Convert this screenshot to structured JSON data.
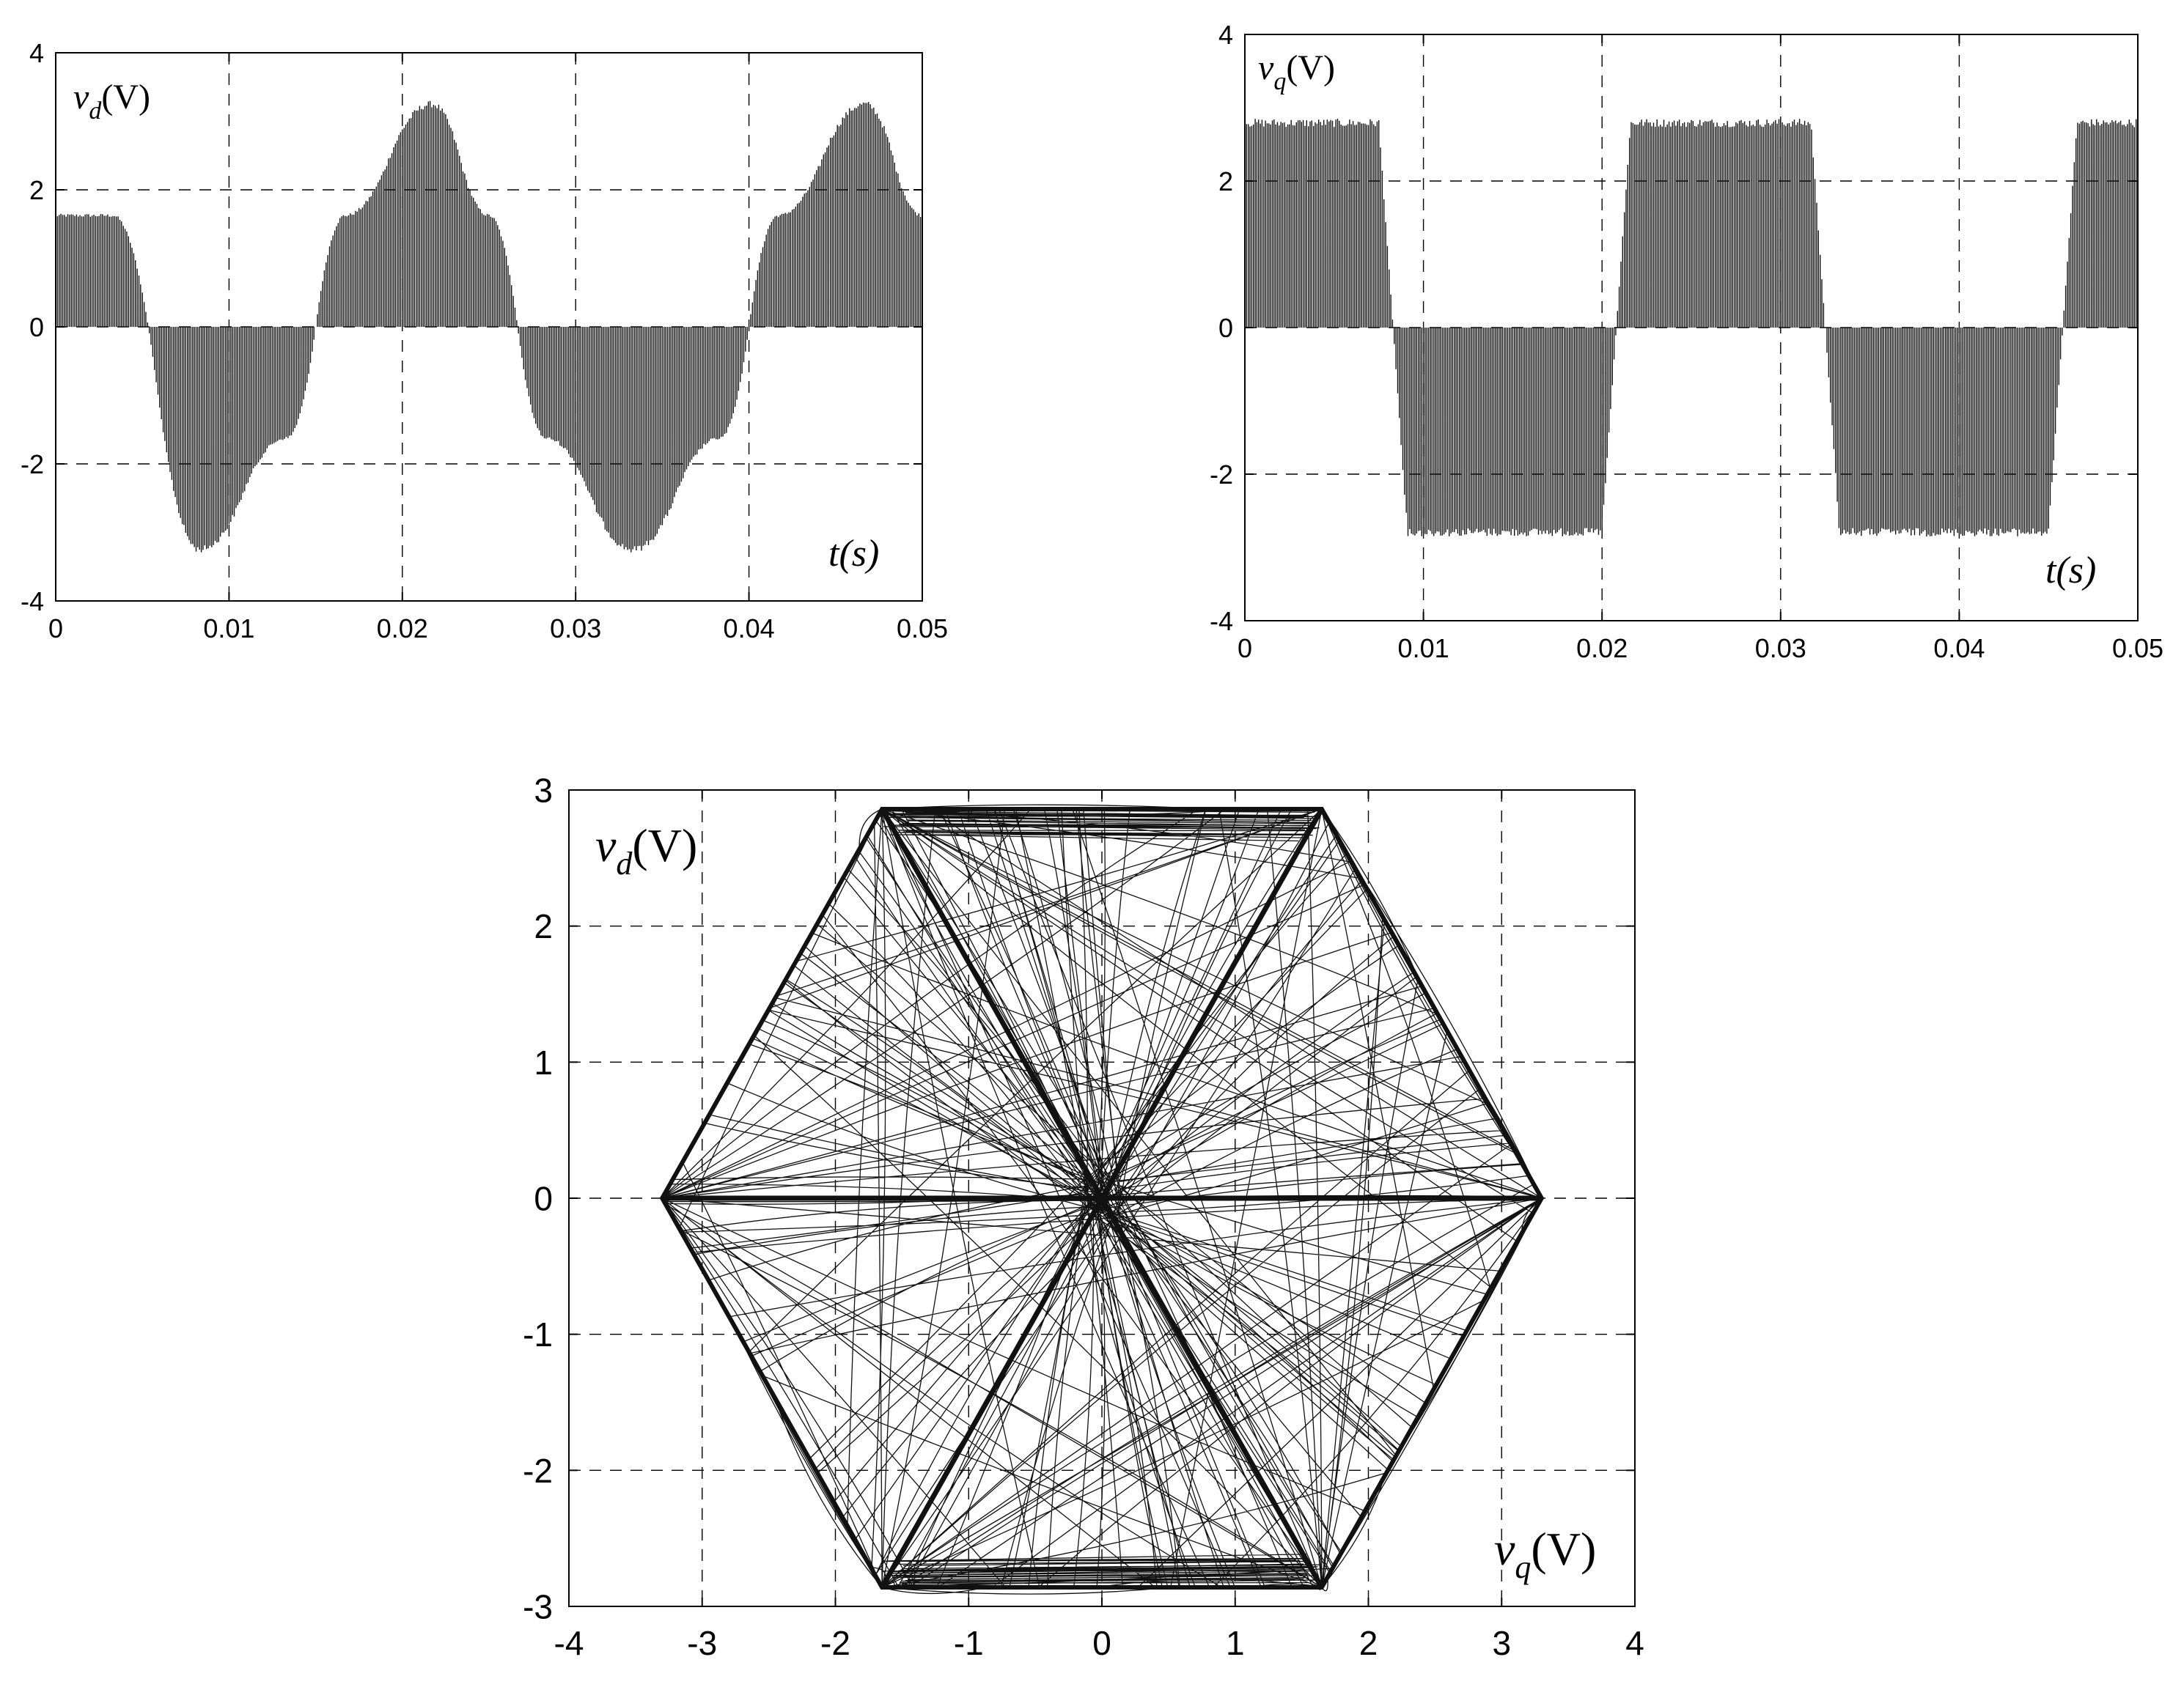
{
  "chart_data": [
    {
      "id": "vd-time",
      "type": "line",
      "title": "",
      "xlabel": "t(s)",
      "ylabel": "v_d(V)",
      "xlim": [
        0,
        0.05
      ],
      "ylim": [
        -4,
        4
      ],
      "x_ticks": [
        "0",
        "0.01",
        "0.02",
        "0.03",
        "0.04",
        "0.05"
      ],
      "y_ticks": [
        "4",
        "2",
        "0",
        "-2",
        "-4"
      ],
      "annotations": [
        {
          "text": "v",
          "sub": "d",
          "suffix": "(V)"
        },
        {
          "text": "t(s)"
        }
      ],
      "grid": true,
      "series": [
        {
          "description_values": "PWM pulses between 0 and a stepped six-step envelope",
          "envelope_x": [
            0,
            0.0033,
            0.0083,
            0.0133,
            0.0167,
            0.0217,
            0.025,
            0.0283,
            0.0333,
            0.0383,
            0.0417,
            0.0467,
            0.05
          ],
          "envelope_y": [
            1.65,
            1.65,
            -3.3,
            -1.65,
            1.65,
            3.3,
            1.65,
            -1.65,
            -3.3,
            -1.65,
            1.65,
            3.3,
            1.65
          ],
          "period_s": 0.025
        }
      ]
    },
    {
      "id": "vq-time",
      "type": "line",
      "title": "",
      "xlabel": "t(s)",
      "ylabel": "v_q(V)",
      "xlim": [
        0,
        0.05
      ],
      "ylim": [
        -4,
        4
      ],
      "x_ticks": [
        "0",
        "0.01",
        "0.02",
        "0.03",
        "0.04",
        "0.05"
      ],
      "y_ticks": [
        "4",
        "2",
        "0",
        "-2",
        "-4"
      ],
      "annotations": [
        {
          "text": "v",
          "sub": "q",
          "suffix": "(V)"
        },
        {
          "text": "t(s)"
        }
      ],
      "grid": true,
      "series": [
        {
          "description_values": "PWM pulses between 0 and +/-2.85 in alternating blocks",
          "block_edges_s": [
            0,
            0.0083,
            0.0208,
            0.0325,
            0.0458,
            0.05
          ],
          "block_levels": [
            2.85,
            -2.85,
            2.85,
            -2.85,
            2.85
          ],
          "period_s": 0.025
        }
      ]
    },
    {
      "id": "vd-vq-locus",
      "type": "scatter",
      "title": "",
      "xlabel": "v_q(V)",
      "ylabel": "v_d(V)",
      "xlim": [
        -4,
        4
      ],
      "ylim": [
        -3,
        3
      ],
      "x_ticks": [
        "-4",
        "-3",
        "-2",
        "-1",
        "0",
        "1",
        "2",
        "3",
        "4"
      ],
      "y_ticks": [
        "3",
        "2",
        "1",
        "0",
        "-1",
        "-2",
        "-3"
      ],
      "annotations": [
        {
          "text": "v",
          "sub": "d",
          "suffix": "(V)"
        },
        {
          "text": "v",
          "sub": "q",
          "suffix": "(V)"
        }
      ],
      "grid": true,
      "hexagon_vertices": [
        [
          3.3,
          0
        ],
        [
          1.65,
          2.86
        ],
        [
          -1.65,
          2.86
        ],
        [
          -3.3,
          0
        ],
        [
          -1.65,
          -2.86
        ],
        [
          1.65,
          -2.86
        ]
      ]
    }
  ]
}
